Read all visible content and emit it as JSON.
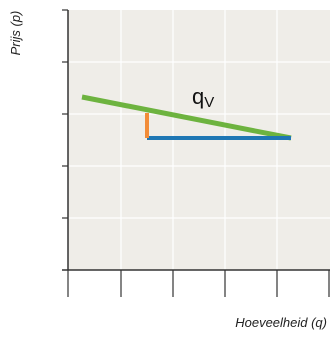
{
  "diagram": {
    "y_axis_label": "Prijs (p)",
    "x_axis_label": "Hoeveelheid (q)",
    "curve_label_main": "q",
    "curve_label_sub": "V",
    "colors": {
      "plot_background": "#efede8",
      "grid": "#ffffff",
      "axis": "#333333",
      "curve": "#6db33f",
      "horizontal_step": "#1f77b4",
      "vertical_step": "#f28c38"
    }
  }
}
